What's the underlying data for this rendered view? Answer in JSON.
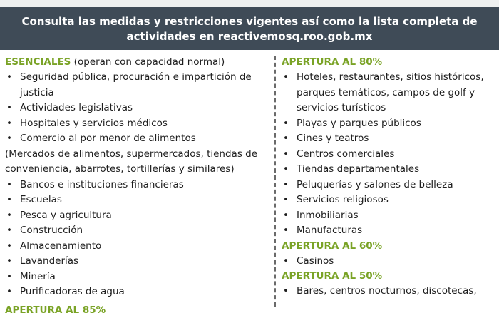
{
  "banner": {
    "line1": "Consulta las medidas y restricciones vigentes así como la lista completa de",
    "line2": "actividades en reactivemosq.roo.gob.mx"
  },
  "left": {
    "heading": "ESENCIALES",
    "heading_note": " (operan con capacidad normal)",
    "items_a": [
      "Seguridad pública, procuración e impartición de justicia",
      "Actividades legislativas",
      "Hospitales y servicios médicos",
      "Comercio al por menor de alimentos"
    ],
    "note": "(Mercados de alimentos, supermercados, tiendas de conveniencia, abarrotes, tortillerías y similares)",
    "items_b": [
      "Bancos e instituciones financieras",
      "Escuelas",
      "Pesca y agricultura",
      "Construcción",
      "Almacenamiento",
      "Lavanderías",
      "Minería",
      "Purificadoras de agua"
    ],
    "next_heading": "APERTURA AL 85%"
  },
  "right": {
    "sections": [
      {
        "heading": "APERTURA AL 80%",
        "items": [
          "Hoteles, restaurantes, sitios históricos, parques temáticos, campos de golf y servicios turísticos",
          "Playas y parques públicos",
          "Cines y teatros",
          "Centros comerciales",
          "Tiendas departamentales",
          "Peluquerías y salones de belleza",
          "Servicios religiosos",
          "Inmobiliarias",
          "Manufacturas"
        ]
      },
      {
        "heading": "APERTURA AL 60%",
        "items": [
          "Casinos"
        ]
      },
      {
        "heading": "APERTURA AL 50%",
        "items": [
          "Bares, centros nocturnos, discotecas,"
        ]
      }
    ]
  },
  "colors": {
    "banner_bg": "#3f4b57",
    "heading": "#7aa326",
    "text": "#1d1d1d"
  }
}
